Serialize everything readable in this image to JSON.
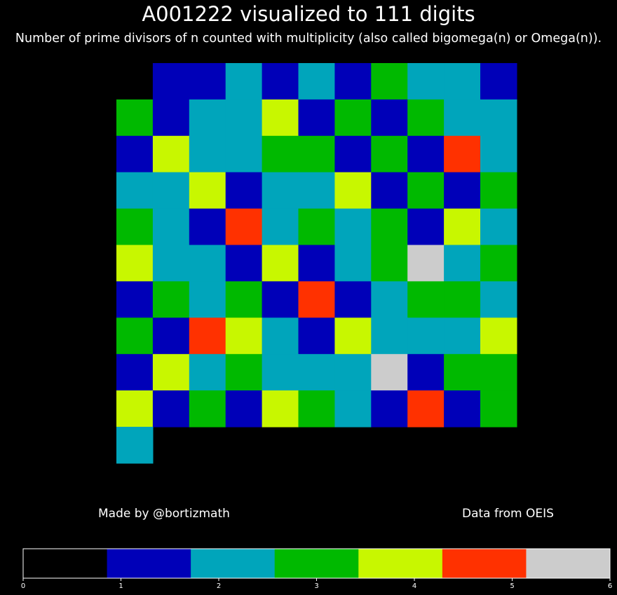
{
  "chart_data": {
    "type": "heatmap",
    "title": "A001222 visualized to 111 digits",
    "subtitle": "Number of prime divisors of n counted with multiplicity (also called bigomega(n) or Omega(n)).",
    "columns": 11,
    "leading_blank_cells": 1,
    "values": [
      1,
      1,
      2,
      1,
      2,
      1,
      3,
      2,
      2,
      1,
      3,
      1,
      2,
      2,
      4,
      1,
      3,
      1,
      3,
      2,
      2,
      1,
      4,
      2,
      2,
      3,
      3,
      1,
      3,
      1,
      5,
      2,
      2,
      2,
      4,
      1,
      2,
      2,
      4,
      1,
      3,
      1,
      3,
      3,
      2,
      1,
      5,
      2,
      3,
      2,
      3,
      1,
      4,
      2,
      4,
      2,
      2,
      1,
      4,
      1,
      2,
      3,
      6,
      2,
      3,
      1,
      3,
      2,
      3,
      1,
      5,
      1,
      2,
      3,
      3,
      2,
      3,
      1,
      5,
      4,
      2,
      1,
      4,
      2,
      2,
      2,
      4,
      1,
      4,
      2,
      3,
      2,
      2,
      2,
      6,
      1,
      3,
      3,
      4,
      1,
      3,
      1,
      4,
      3,
      2,
      1,
      5,
      1,
      3,
      2
    ],
    "colormap": {
      "min": 0,
      "max": 6,
      "colors": [
        "#000000",
        "#0000b8",
        "#00a5bb",
        "#00b900",
        "#c8f700",
        "#ff3100",
        "#cccccc"
      ]
    },
    "colorbar_ticks": [
      "0",
      "1",
      "2",
      "3",
      "4",
      "5",
      "6"
    ]
  },
  "credits": {
    "left": "Made by @bortizmath",
    "right": "Data from OEIS"
  }
}
